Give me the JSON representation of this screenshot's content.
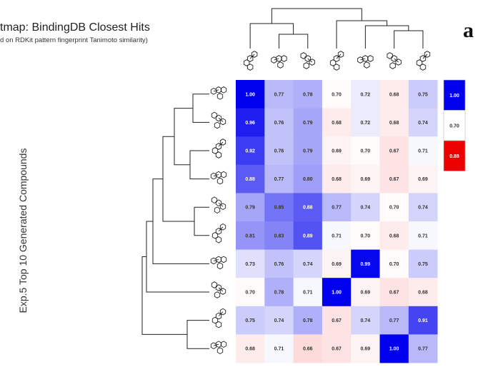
{
  "chart_data": {
    "type": "heatmap",
    "title": "tmap: BindingDB Closest Hits",
    "subtitle": "d on RDKit pattern fingerprint Tanimoto similarity)",
    "ylabel": "Exp.5 Top 10 Generated Compounds",
    "panel_label": "a",
    "values": [
      [
        "1.00",
        "0.77",
        "0.78",
        "0.70",
        "0.72",
        "0.68",
        "0.75"
      ],
      [
        "0.96",
        "0.76",
        "0.79",
        "0.68",
        "0.72",
        "0.68",
        "0.74"
      ],
      [
        "0.92",
        "0.76",
        "0.79",
        "0.69",
        "0.70",
        "0.67",
        "0.71"
      ],
      [
        "0.88",
        "0.77",
        "0.80",
        "0.68",
        "0.69",
        "0.67",
        "0.69"
      ],
      [
        "0.79",
        "0.85",
        "0.88",
        "0.77",
        "0.74",
        "0.70",
        "0.74"
      ],
      [
        "0.81",
        "0.83",
        "0.89",
        "0.71",
        "0.70",
        "0.68",
        "0.71"
      ],
      [
        "0.73",
        "0.76",
        "0.74",
        "0.69",
        "0.99",
        "0.70",
        "0.75"
      ],
      [
        "0.70",
        "0.78",
        "0.71",
        "1.00",
        "0.69",
        "0.67",
        "0.68"
      ],
      [
        "0.75",
        "0.74",
        "0.78",
        "0.67",
        "0.74",
        "0.77",
        "0.91"
      ],
      [
        "0.68",
        "0.71",
        "0.66",
        "0.67",
        "0.69",
        "1.00",
        "0.77"
      ]
    ],
    "colorbar": {
      "labels": [
        "1.00",
        "0.70",
        "0.88"
      ]
    },
    "colors": {
      "high": "#0000ee",
      "mid": "#ffffff",
      "low": "#ee0000"
    },
    "value_range": [
      0.66,
      1.0
    ],
    "row_count": 10,
    "column_count": 7
  }
}
